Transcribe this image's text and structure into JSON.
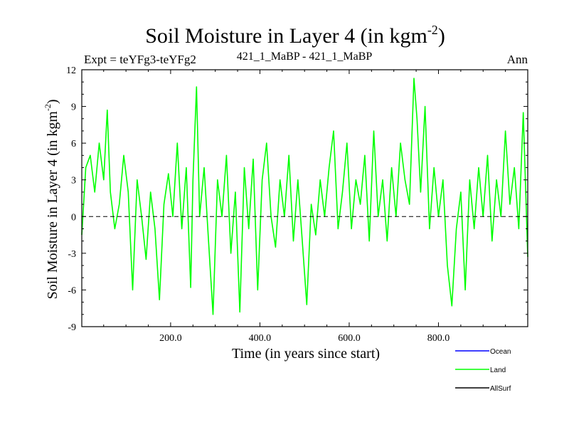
{
  "chart_data": {
    "type": "line",
    "title": {
      "main": "Soil Moisture in Layer 4 (in kgm",
      "sup": "-2",
      "close": ")"
    },
    "experiment_label": "Expt = teYFg3-teYFg2",
    "subtitle": "421_1_MaBP - 421_1_MaBP",
    "season": "Ann",
    "xlabel": "Time (in years since start)",
    "ylabel": {
      "main": "Soil Moisture in Layer 4 (in kgm",
      "sup": "-2",
      "close": ")"
    },
    "xlim": [
      1,
      1000
    ],
    "ylim": [
      -9,
      12
    ],
    "xticks": [
      {
        "value": 200,
        "label": "200.0"
      },
      {
        "value": 400,
        "label": "400.0"
      },
      {
        "value": 600,
        "label": "600.0"
      },
      {
        "value": 800,
        "label": "800.0"
      }
    ],
    "yticks": [
      {
        "value": -9,
        "label": "-9"
      },
      {
        "value": -6,
        "label": "-6"
      },
      {
        "value": -3,
        "label": "-3"
      },
      {
        "value": 0,
        "label": "0"
      },
      {
        "value": 3,
        "label": "3"
      },
      {
        "value": 6,
        "label": "6"
      },
      {
        "value": 9,
        "label": "9"
      },
      {
        "value": 12,
        "label": "12"
      }
    ],
    "zero_line": 0,
    "legend_position": "bottom-right",
    "series": [
      {
        "name": "Ocean",
        "color": "#0000ff",
        "values": []
      },
      {
        "name": "Land",
        "color": "#00ff00",
        "values": [
          {
            "x": 1,
            "y": -1.5
          },
          {
            "x": 10,
            "y": 4
          },
          {
            "x": 20,
            "y": 5
          },
          {
            "x": 30,
            "y": 2
          },
          {
            "x": 40,
            "y": 6
          },
          {
            "x": 50,
            "y": 3
          },
          {
            "x": 58,
            "y": 8.7
          },
          {
            "x": 65,
            "y": 2
          },
          {
            "x": 75,
            "y": -1
          },
          {
            "x": 85,
            "y": 1
          },
          {
            "x": 95,
            "y": 5
          },
          {
            "x": 105,
            "y": 2
          },
          {
            "x": 115,
            "y": -6
          },
          {
            "x": 125,
            "y": 3
          },
          {
            "x": 135,
            "y": 0
          },
          {
            "x": 145,
            "y": -3.5
          },
          {
            "x": 155,
            "y": 2
          },
          {
            "x": 165,
            "y": -1
          },
          {
            "x": 175,
            "y": -6.8
          },
          {
            "x": 185,
            "y": 1
          },
          {
            "x": 195,
            "y": 3.5
          },
          {
            "x": 205,
            "y": 0
          },
          {
            "x": 215,
            "y": 6
          },
          {
            "x": 225,
            "y": -1
          },
          {
            "x": 235,
            "y": 4
          },
          {
            "x": 245,
            "y": -5.8
          },
          {
            "x": 250,
            "y": 3
          },
          {
            "x": 258,
            "y": 10.6
          },
          {
            "x": 265,
            "y": 0
          },
          {
            "x": 275,
            "y": 4
          },
          {
            "x": 285,
            "y": -2
          },
          {
            "x": 295,
            "y": -8
          },
          {
            "x": 305,
            "y": 3
          },
          {
            "x": 315,
            "y": 0
          },
          {
            "x": 325,
            "y": 5
          },
          {
            "x": 335,
            "y": -3
          },
          {
            "x": 345,
            "y": 2
          },
          {
            "x": 355,
            "y": -7.8
          },
          {
            "x": 365,
            "y": 4
          },
          {
            "x": 375,
            "y": -1
          },
          {
            "x": 385,
            "y": 4.7
          },
          {
            "x": 395,
            "y": -6
          },
          {
            "x": 405,
            "y": 3
          },
          {
            "x": 415,
            "y": 6
          },
          {
            "x": 425,
            "y": 0
          },
          {
            "x": 435,
            "y": -2.5
          },
          {
            "x": 445,
            "y": 3
          },
          {
            "x": 455,
            "y": 0
          },
          {
            "x": 465,
            "y": 5
          },
          {
            "x": 475,
            "y": -2
          },
          {
            "x": 485,
            "y": 3
          },
          {
            "x": 495,
            "y": -2
          },
          {
            "x": 505,
            "y": -7.2
          },
          {
            "x": 515,
            "y": 1
          },
          {
            "x": 525,
            "y": -1.5
          },
          {
            "x": 535,
            "y": 3
          },
          {
            "x": 545,
            "y": 0
          },
          {
            "x": 555,
            "y": 4
          },
          {
            "x": 565,
            "y": 7
          },
          {
            "x": 575,
            "y": -1
          },
          {
            "x": 585,
            "y": 2
          },
          {
            "x": 595,
            "y": 6
          },
          {
            "x": 605,
            "y": -1
          },
          {
            "x": 615,
            "y": 3
          },
          {
            "x": 625,
            "y": 1
          },
          {
            "x": 635,
            "y": 5
          },
          {
            "x": 645,
            "y": -2
          },
          {
            "x": 655,
            "y": 7
          },
          {
            "x": 665,
            "y": 0
          },
          {
            "x": 675,
            "y": 3
          },
          {
            "x": 685,
            "y": -2
          },
          {
            "x": 695,
            "y": 4
          },
          {
            "x": 705,
            "y": 0
          },
          {
            "x": 715,
            "y": 6
          },
          {
            "x": 725,
            "y": 3
          },
          {
            "x": 735,
            "y": 1
          },
          {
            "x": 745,
            "y": 11.3
          },
          {
            "x": 752,
            "y": 8
          },
          {
            "x": 760,
            "y": 2
          },
          {
            "x": 770,
            "y": 9
          },
          {
            "x": 780,
            "y": -1
          },
          {
            "x": 790,
            "y": 4
          },
          {
            "x": 800,
            "y": 0
          },
          {
            "x": 810,
            "y": 3
          },
          {
            "x": 820,
            "y": -4
          },
          {
            "x": 830,
            "y": -7.3
          },
          {
            "x": 840,
            "y": -1
          },
          {
            "x": 850,
            "y": 2
          },
          {
            "x": 860,
            "y": -6
          },
          {
            "x": 870,
            "y": 3
          },
          {
            "x": 880,
            "y": -1
          },
          {
            "x": 890,
            "y": 4
          },
          {
            "x": 900,
            "y": 0
          },
          {
            "x": 910,
            "y": 5
          },
          {
            "x": 920,
            "y": -2
          },
          {
            "x": 930,
            "y": 3
          },
          {
            "x": 940,
            "y": 0
          },
          {
            "x": 950,
            "y": 7
          },
          {
            "x": 960,
            "y": 1
          },
          {
            "x": 970,
            "y": 4
          },
          {
            "x": 980,
            "y": -1
          },
          {
            "x": 990,
            "y": 8.5
          },
          {
            "x": 1000,
            "y": -3.3
          }
        ]
      },
      {
        "name": "AllSurf",
        "color": "#000000",
        "values": []
      }
    ]
  }
}
